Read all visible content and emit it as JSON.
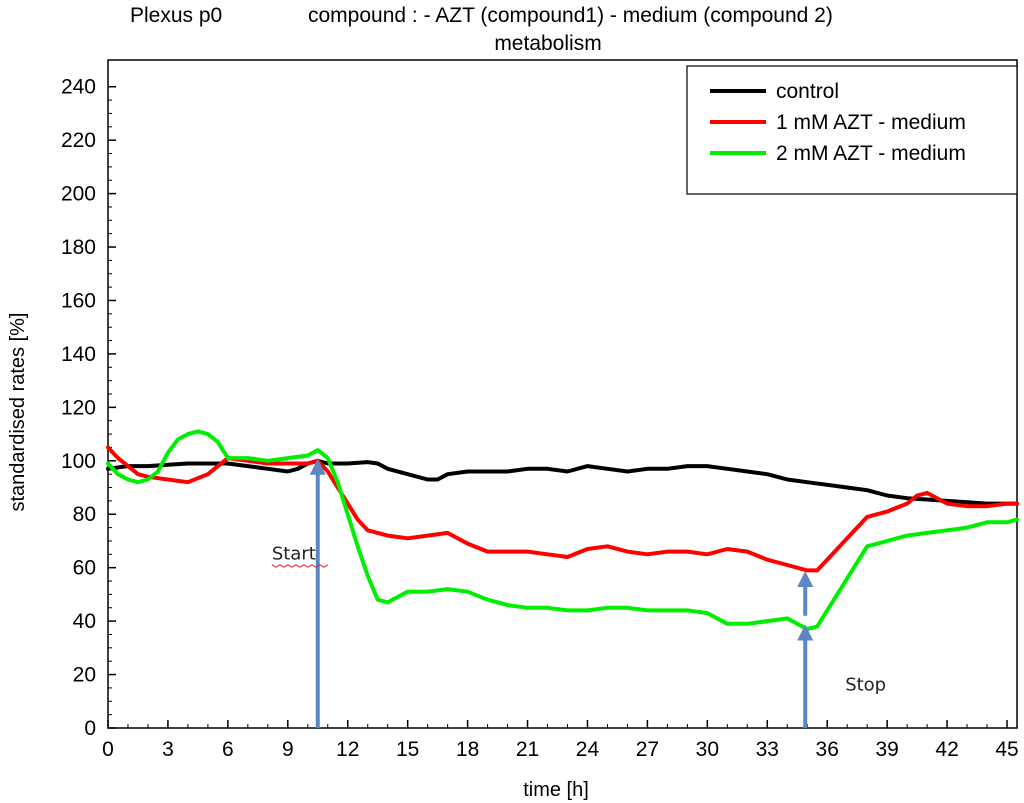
{
  "chart_data": {
    "type": "line",
    "title_line1_left": "Plexus p0",
    "title_line1_right": "compound : - AZT (compound1)  - medium (compound 2)",
    "title_line2": "metabolism",
    "xlabel": "time [h]",
    "ylabel": "standardised rates [%]",
    "xlim": [
      0,
      45.5
    ],
    "ylim": [
      0,
      250
    ],
    "x_ticks": [
      0,
      3,
      6,
      9,
      12,
      15,
      18,
      21,
      24,
      27,
      30,
      33,
      36,
      39,
      42,
      45
    ],
    "y_ticks": [
      0,
      20,
      40,
      60,
      80,
      100,
      120,
      140,
      160,
      180,
      200,
      220,
      240
    ],
    "grid": false,
    "legend_position": "top-right",
    "series": [
      {
        "name": "control",
        "color": "#000000",
        "x": [
          0,
          1,
          2,
          3,
          4,
          5,
          6,
          7,
          8,
          9,
          9.5,
          10,
          10.5,
          11,
          12,
          13,
          13.5,
          14,
          15,
          16,
          16.5,
          17,
          18,
          19,
          20,
          21,
          22,
          23,
          24,
          25,
          26,
          27,
          28,
          29,
          30,
          31,
          32,
          33,
          34,
          35,
          36,
          37,
          38,
          39,
          40,
          41,
          42,
          43,
          44,
          45,
          45.5
        ],
        "values": [
          97,
          98,
          98,
          98.5,
          99,
          99,
          99,
          98,
          97,
          96,
          97,
          99,
          100,
          99,
          99,
          99.5,
          99,
          97,
          95,
          93,
          93,
          95,
          96,
          96,
          96,
          97,
          97,
          96,
          98,
          97,
          96,
          97,
          97,
          98,
          98,
          97,
          96,
          95,
          93,
          92,
          91,
          90,
          89,
          87,
          86,
          85.5,
          85,
          84.5,
          84,
          84,
          84
        ]
      },
      {
        "name": "1 mM AZT - medium",
        "color": "#ff0000",
        "x": [
          0,
          0.5,
          1,
          1.5,
          2,
          3,
          4,
          5,
          6,
          7,
          8,
          9,
          10,
          10.5,
          11,
          11.5,
          12,
          12.5,
          13,
          14,
          15,
          16,
          17,
          18,
          19,
          20,
          21,
          22,
          23,
          24,
          25,
          26,
          27,
          28,
          29,
          30,
          31,
          32,
          33,
          34,
          35,
          35.5,
          36,
          37,
          38,
          39,
          40,
          40.5,
          41,
          42,
          43,
          44,
          45,
          45.5
        ],
        "values": [
          105,
          101,
          98,
          95,
          94,
          93,
          92,
          95,
          101,
          100,
          99,
          99,
          99,
          100,
          96,
          90,
          84,
          78,
          74,
          72,
          71,
          72,
          73,
          69,
          66,
          66,
          66,
          65,
          64,
          67,
          68,
          66,
          65,
          66,
          66,
          65,
          67,
          66,
          63,
          61,
          59,
          59,
          63,
          71,
          79,
          81,
          84,
          87,
          88,
          84,
          83,
          83,
          84,
          84
        ]
      },
      {
        "name": "2 mM AZT - medium",
        "color": "#00ee00",
        "x": [
          0,
          0.5,
          1,
          1.5,
          2,
          2.5,
          3,
          3.5,
          4,
          4.5,
          5,
          5.5,
          6,
          6.5,
          7,
          8,
          9,
          10,
          10.5,
          11,
          11.5,
          12,
          12.5,
          13,
          13.5,
          14,
          15,
          16,
          17,
          18,
          19,
          20,
          21,
          22,
          23,
          24,
          25,
          26,
          27,
          28,
          29,
          30,
          31,
          32,
          33,
          34,
          34.5,
          35,
          35.5,
          36,
          37,
          38,
          39,
          40,
          41,
          42,
          43,
          44,
          45,
          45.5
        ],
        "values": [
          99,
          95,
          93,
          92,
          93,
          96,
          103,
          108,
          110,
          111,
          110,
          107,
          101,
          101,
          101,
          100,
          101,
          102,
          104,
          101,
          92,
          80,
          68,
          57,
          48,
          47,
          51,
          51,
          52,
          51,
          48,
          46,
          45,
          45,
          44,
          44,
          45,
          45,
          44,
          44,
          44,
          43,
          39,
          39,
          40,
          41,
          39,
          37,
          38,
          44,
          56,
          68,
          70,
          72,
          73,
          74,
          75,
          77,
          77,
          78
        ]
      }
    ],
    "annotations": [
      {
        "text": "Start",
        "x": 8.2,
        "y": 63
      },
      {
        "text": "Stop",
        "x": 36.9,
        "y": 14
      }
    ],
    "arrows": [
      {
        "x": 10.5,
        "y_from": 0,
        "y_to": 100,
        "color": "#5b87c5"
      },
      {
        "x": 34.9,
        "y_from": 0,
        "y_to": 38,
        "color": "#5b87c5"
      },
      {
        "x": 34.9,
        "y_from": 42,
        "y_to": 58,
        "color": "#5b87c5"
      }
    ]
  }
}
